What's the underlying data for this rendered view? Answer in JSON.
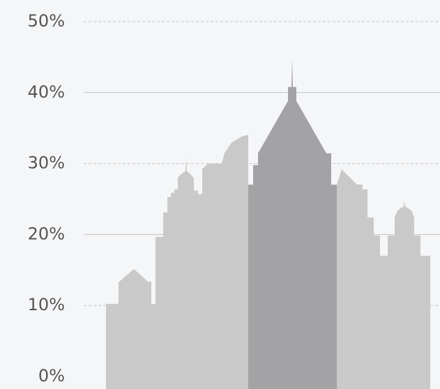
{
  "chart_data": {
    "type": "bar",
    "categories": [
      null,
      null,
      null
    ],
    "values": [
      30,
      40,
      29
    ],
    "colors": [
      "#c9c9c9",
      "#a3a3a5",
      "#c9c9c9"
    ],
    "ylim": [
      0,
      50
    ],
    "yticks": [
      {
        "value": 0,
        "label": "0%"
      },
      {
        "value": 10,
        "label": "10%"
      },
      {
        "value": 20,
        "label": "20%"
      },
      {
        "value": 30,
        "label": "30%"
      },
      {
        "value": 40,
        "label": "40%"
      },
      {
        "value": 50,
        "label": "50%"
      }
    ],
    "grid": true
  }
}
